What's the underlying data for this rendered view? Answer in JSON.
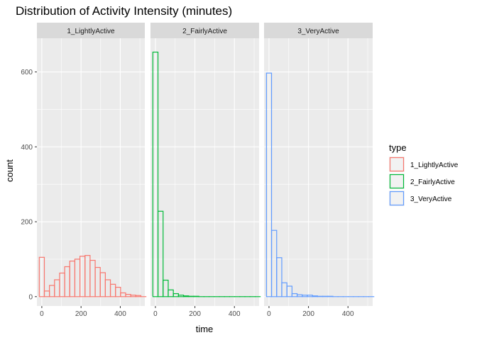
{
  "chart_data": {
    "type": "bar",
    "subtype": "faceted-histogram",
    "title": "Distribution of Activity Intensity (minutes)",
    "xlabel": "time",
    "ylabel": "count",
    "xlim": [
      -25,
      525
    ],
    "ylim": [
      -25,
      690
    ],
    "x_ticks": [
      0,
      200,
      400
    ],
    "y_ticks": [
      0,
      200,
      400,
      600
    ],
    "bin_width": 25.9,
    "grid": true,
    "legend": {
      "title": "type",
      "position": "right"
    },
    "facets": [
      {
        "name": "1_LightlyActive",
        "color": "#F8766D",
        "x": [
          0,
          25.9,
          51.8,
          77.7,
          103.6,
          129.5,
          155.4,
          181.3,
          207.2,
          233.1,
          259.0,
          284.9,
          310.8,
          336.7,
          362.6,
          388.5,
          414.4,
          440.3,
          466.2,
          492.1,
          518.0
        ],
        "values": [
          105,
          15,
          30,
          45,
          63,
          80,
          95,
          100,
          108,
          110,
          97,
          78,
          64,
          45,
          33,
          25,
          10,
          6,
          4,
          3,
          0
        ]
      },
      {
        "name": "2_FairlyActive",
        "color": "#00BA38",
        "x": [
          0,
          25.9,
          51.8,
          77.7,
          103.6,
          129.5,
          155.4,
          181.3,
          207.2,
          233.1,
          259.0,
          284.9,
          310.8,
          336.7,
          362.6,
          388.5,
          414.4,
          440.3,
          466.2,
          492.1,
          518.0
        ],
        "values": [
          653,
          228,
          44,
          18,
          8,
          4,
          2,
          1,
          1,
          0,
          0,
          0,
          0,
          0,
          0,
          0,
          0,
          0,
          0,
          0,
          0
        ]
      },
      {
        "name": "3_VeryActive",
        "color": "#619CFF",
        "x": [
          0,
          25.9,
          51.8,
          77.7,
          103.6,
          129.5,
          155.4,
          181.3,
          207.2,
          233.1,
          259.0,
          284.9,
          310.8,
          336.7,
          362.6,
          388.5,
          414.4,
          440.3,
          466.2,
          492.1,
          518.0
        ],
        "values": [
          597,
          177,
          104,
          37,
          28,
          8,
          5,
          4,
          4,
          2,
          1,
          1,
          1,
          0,
          0,
          0,
          0,
          0,
          0,
          0,
          0
        ]
      }
    ]
  }
}
